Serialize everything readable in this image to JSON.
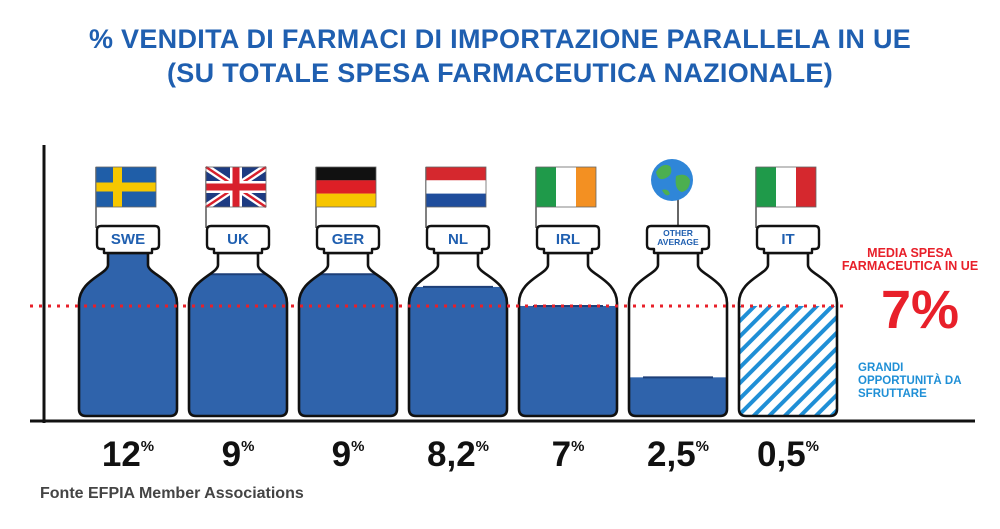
{
  "title_lines": [
    "% VENDITA DI FARMACI DI IMPORTAZIONE PARALLELA IN UE",
    "(SU TOTALE SPESA FARMACEUTICA NAZIONALE)"
  ],
  "source": "Fonte EFPIA Member Associations",
  "colors": {
    "title": "#1f5fb0",
    "fill": "#2f63ab",
    "red": "#e8202a",
    "light_blue": "#1f8fd6"
  },
  "chart_data": {
    "type": "bar",
    "categories": [
      "SWE",
      "UK",
      "GER",
      "NL",
      "IRL",
      "OTHER AVERAGE",
      "IT"
    ],
    "values": [
      12,
      9,
      9,
      8.2,
      7,
      2.5,
      0.5
    ],
    "value_labels": [
      "12",
      "9",
      "9",
      "8,2",
      "7",
      "2,5",
      "0,5"
    ],
    "value_suffix": "%",
    "flags": [
      "sweden-flag-icon",
      "uk-flag-icon",
      "germany-flag-icon",
      "netherlands-flag-icon",
      "ireland-flag-icon",
      "globe-icon",
      "italy-flag-icon"
    ],
    "ylim": [
      0,
      14.5
    ],
    "reference_line": {
      "value": 7,
      "label": "MEDIA SPESA FARMACEUTICA IN UE",
      "value_label": "7%"
    },
    "hatched_category": "IT",
    "hatch_label": "GRANDI OPPORTUNITÀ DA SFRUTTARE",
    "xlabel": "",
    "ylabel": ""
  }
}
